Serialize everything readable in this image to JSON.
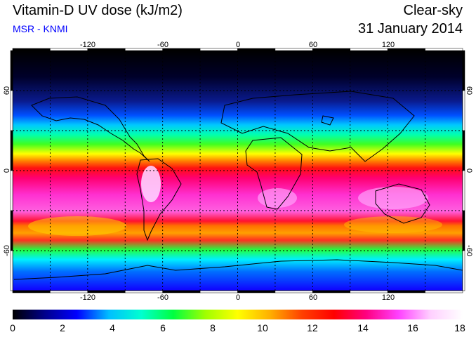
{
  "header": {
    "title": "Vitamin-D UV dose (kJ/m2)",
    "credit": "MSR - KNMI",
    "sky_condition": "Clear-sky",
    "date": "31 January 2014"
  },
  "map": {
    "projection": "equirectangular",
    "lon_range": [
      -180,
      180
    ],
    "lat_range": [
      -90,
      90
    ],
    "top_lon_labels": [
      "-120",
      "-60",
      "0",
      "60",
      "120"
    ],
    "bottom_lon_labels": [
      "-120",
      "-60",
      "0",
      "60",
      "120"
    ],
    "left_lat_labels": [
      "60",
      "0",
      "-60"
    ],
    "right_lat_labels": [
      "60",
      "0",
      "-60"
    ],
    "gridline_style": "dotted"
  },
  "colorbar": {
    "min": 0,
    "max": 18,
    "tick_labels": [
      "0",
      "2",
      "4",
      "6",
      "8",
      "10",
      "12",
      "14",
      "16",
      "18"
    ],
    "colors": [
      "#000000",
      "#00008b",
      "#0000ff",
      "#00bfff",
      "#00ffd0",
      "#00ff40",
      "#a0ff00",
      "#ffff00",
      "#ffb000",
      "#ff4000",
      "#ff0000",
      "#ff0080",
      "#ff40ff",
      "#ffd0ff",
      "#ffffff"
    ]
  }
}
